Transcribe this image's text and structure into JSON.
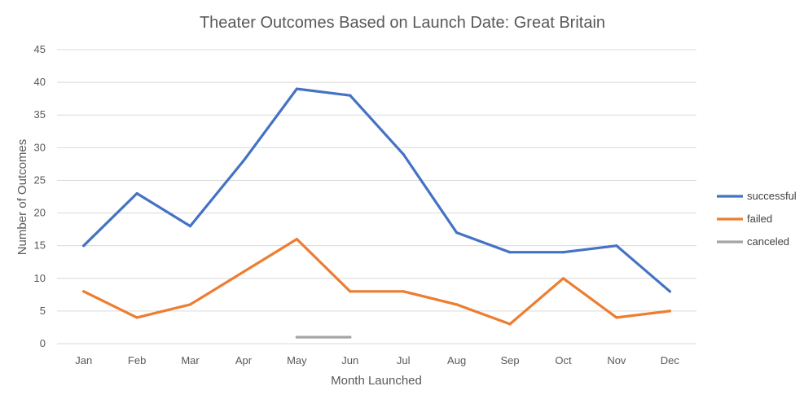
{
  "chart_data": {
    "type": "line",
    "title": "Theater Outcomes Based on Launch Date: Great Britain",
    "xlabel": "Month Launched",
    "ylabel": "Number of Outcomes",
    "categories": [
      "Jan",
      "Feb",
      "Mar",
      "Apr",
      "May",
      "Jun",
      "Jul",
      "Aug",
      "Sep",
      "Oct",
      "Nov",
      "Dec"
    ],
    "ylim": [
      0,
      45
    ],
    "yticks": [
      0,
      5,
      10,
      15,
      20,
      25,
      30,
      35,
      40,
      45
    ],
    "grid": true,
    "legend_position": "right",
    "series": [
      {
        "name": "successful",
        "color": "#4472C4",
        "values": [
          15,
          23,
          18,
          28,
          39,
          38,
          29,
          17,
          14,
          14,
          15,
          8
        ]
      },
      {
        "name": "failed",
        "color": "#ED7D31",
        "values": [
          8,
          4,
          6,
          11,
          16,
          8,
          8,
          6,
          3,
          10,
          4,
          5
        ]
      },
      {
        "name": "canceled",
        "color": "#A5A5A5",
        "values": [
          null,
          null,
          null,
          null,
          1,
          1,
          null,
          null,
          null,
          null,
          null,
          null
        ]
      }
    ]
  }
}
